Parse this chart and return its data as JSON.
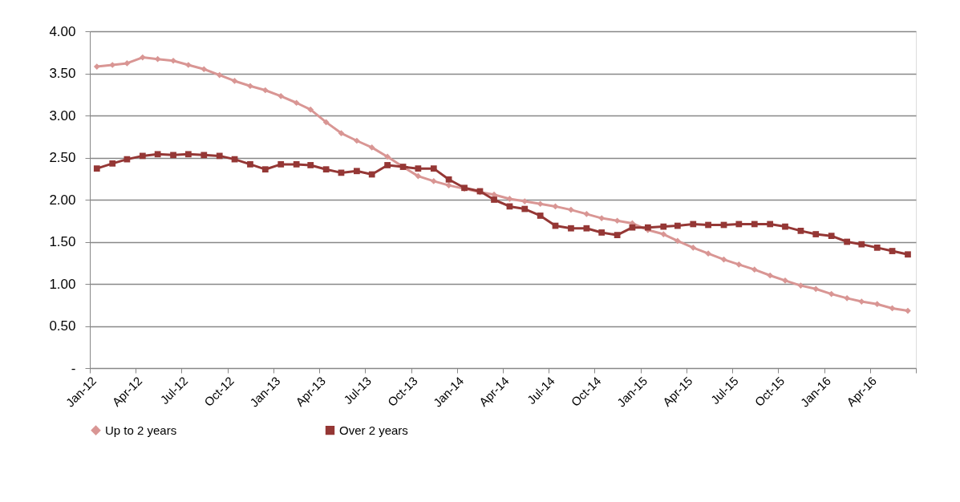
{
  "chart_data": {
    "type": "line",
    "x": [
      "2012-01-15",
      "2012-02-15",
      "2012-03-15",
      "2012-04-15",
      "2012-05-15",
      "2012-06-15",
      "2012-07-15",
      "2012-08-15",
      "2012-09-15",
      "2012-10-15",
      "2012-11-15",
      "2012-12-15",
      "2013-01-15",
      "2013-02-15",
      "2013-03-15",
      "2013-04-15",
      "2013-05-15",
      "2013-06-15",
      "2013-07-15",
      "2013-08-15",
      "2013-09-15",
      "2013-10-15",
      "2013-11-15",
      "2013-12-15",
      "2014-01-15",
      "2014-02-15",
      "2014-03-15",
      "2014-04-15",
      "2014-05-15",
      "2014-06-15",
      "2014-07-15",
      "2014-08-15",
      "2014-09-15",
      "2014-10-15",
      "2014-11-15",
      "2014-12-15",
      "2015-01-15",
      "2015-02-15",
      "2015-03-15",
      "2015-04-15",
      "2015-05-15",
      "2015-06-15",
      "2015-07-15",
      "2015-08-15",
      "2015-09-15",
      "2015-10-15",
      "2015-11-15",
      "2015-12-15",
      "2016-01-15",
      "2016-02-15",
      "2016-03-15",
      "2016-04-15",
      "2016-05-15",
      "2016-06-15"
    ],
    "series": [
      {
        "name": "Up to 2 years",
        "color": "#d99694",
        "marker": "diamond",
        "values": [
          3.58,
          3.6,
          3.62,
          3.69,
          3.67,
          3.65,
          3.6,
          3.55,
          3.48,
          3.41,
          3.35,
          3.3,
          3.23,
          3.15,
          3.07,
          2.92,
          2.79,
          2.7,
          2.62,
          2.51,
          2.39,
          2.28,
          2.22,
          2.17,
          2.13,
          2.09,
          2.06,
          2.01,
          1.98,
          1.95,
          1.92,
          1.88,
          1.83,
          1.78,
          1.75,
          1.72,
          1.64,
          1.59,
          1.51,
          1.43,
          1.36,
          1.29,
          1.23,
          1.17,
          1.1,
          1.04,
          0.98,
          0.94,
          0.88,
          0.83,
          0.79,
          0.76,
          0.71,
          0.68
        ]
      },
      {
        "name": "Over 2 years",
        "color": "#953735",
        "marker": "square",
        "values": [
          2.37,
          2.43,
          2.48,
          2.52,
          2.54,
          2.53,
          2.54,
          2.53,
          2.52,
          2.48,
          2.42,
          2.36,
          2.42,
          2.42,
          2.41,
          2.36,
          2.32,
          2.34,
          2.3,
          2.41,
          2.39,
          2.37,
          2.37,
          2.24,
          2.14,
          2.1,
          2.0,
          1.92,
          1.89,
          1.81,
          1.69,
          1.66,
          1.66,
          1.61,
          1.58,
          1.67,
          1.67,
          1.68,
          1.69,
          1.71,
          1.7,
          1.7,
          1.71,
          1.71,
          1.71,
          1.68,
          1.63,
          1.59,
          1.57,
          1.5,
          1.47,
          1.43,
          1.39,
          1.35
        ]
      }
    ],
    "xlim": [
      "2012-01-01",
      "2016-07-01"
    ],
    "xticks": [
      {
        "value": "2012-01-01",
        "label": "Jan-12"
      },
      {
        "value": "2012-04-01",
        "label": "Apr-12"
      },
      {
        "value": "2012-07-01",
        "label": "Jul-12"
      },
      {
        "value": "2012-10-01",
        "label": "Oct-12"
      },
      {
        "value": "2013-01-01",
        "label": "Jan-13"
      },
      {
        "value": "2013-04-01",
        "label": "Apr-13"
      },
      {
        "value": "2013-07-01",
        "label": "Jul-13"
      },
      {
        "value": "2013-10-01",
        "label": "Oct-13"
      },
      {
        "value": "2014-01-01",
        "label": "Jan-14"
      },
      {
        "value": "2014-04-01",
        "label": "Apr-14"
      },
      {
        "value": "2014-07-01",
        "label": "Jul-14"
      },
      {
        "value": "2014-10-01",
        "label": "Oct-14"
      },
      {
        "value": "2015-01-01",
        "label": "Jan-15"
      },
      {
        "value": "2015-04-01",
        "label": "Apr-15"
      },
      {
        "value": "2015-07-01",
        "label": "Jul-15"
      },
      {
        "value": "2015-10-01",
        "label": "Oct-15"
      },
      {
        "value": "2016-01-01",
        "label": "Jan-16"
      },
      {
        "value": "2016-04-01",
        "label": "Apr-16"
      },
      {
        "value": "2016-07-01",
        "label": null
      }
    ],
    "ylim": [
      0,
      4
    ],
    "yticks": [
      {
        "value": 0,
        "label": "-"
      },
      {
        "value": 0.5,
        "label": "0.50"
      },
      {
        "value": 1,
        "label": "1.00"
      },
      {
        "value": 1.5,
        "label": "1.50"
      },
      {
        "value": 2,
        "label": "2.00"
      },
      {
        "value": 2.5,
        "label": "2.50"
      },
      {
        "value": 3,
        "label": "3.00"
      },
      {
        "value": 3.5,
        "label": "3.50"
      },
      {
        "value": 4,
        "label": "4.00"
      }
    ],
    "grid": "y",
    "legend": "bottom",
    "line_style": "solid"
  }
}
